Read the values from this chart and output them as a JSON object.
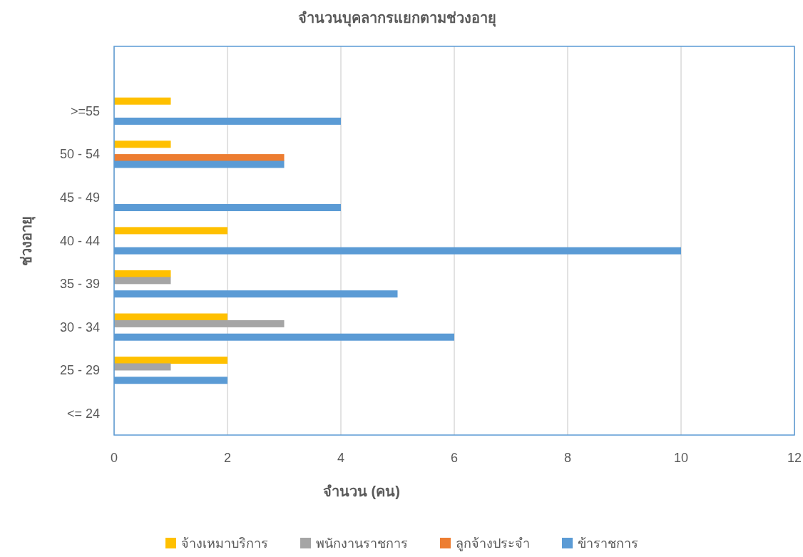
{
  "chart_data": {
    "type": "bar",
    "orientation": "horizontal",
    "title": "จำนวนบุคลากรแยกตามช่วงอายุ",
    "xlabel": "จำนวน (คน)",
    "ylabel": "ช่วงอายุ",
    "categories": [
      null,
      ">=55",
      "50 - 54",
      "45 - 49",
      "40 - 44",
      "35 - 39",
      "30 - 34",
      "25 - 29",
      "<= 24"
    ],
    "series": [
      {
        "name": "จ้างเหมาบริการ",
        "color": "#ffc000",
        "values": [
          null,
          1,
          1,
          null,
          2,
          1,
          2,
          2,
          null
        ]
      },
      {
        "name": "พนักงานราชการ",
        "color": "#a5a5a5",
        "values": [
          null,
          null,
          null,
          null,
          null,
          1,
          3,
          1,
          null
        ]
      },
      {
        "name": "ลูกจ้างประจำ",
        "color": "#ed7d31",
        "values": [
          null,
          null,
          3,
          null,
          null,
          null,
          null,
          null,
          null
        ]
      },
      {
        "name": "ข้าราชการ",
        "color": "#5b9bd5",
        "values": [
          null,
          4,
          3,
          4,
          10,
          5,
          6,
          2,
          null
        ]
      }
    ],
    "xlim": [
      0,
      12
    ],
    "xticks": [
      0,
      2,
      4,
      6,
      8,
      10,
      12
    ],
    "grid": "x",
    "legend": "bottom"
  }
}
